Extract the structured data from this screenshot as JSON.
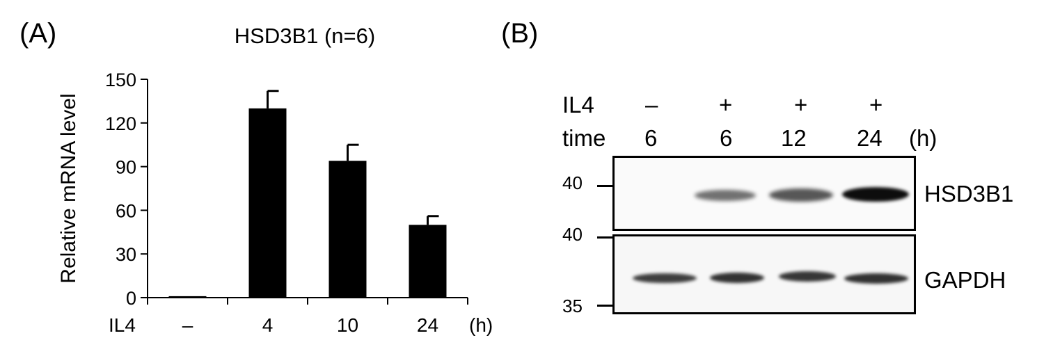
{
  "panel_a": {
    "letter": "(A)",
    "title": "HSD3B1 (n=6)",
    "row_label": "IL4",
    "unit_label": "(h)"
  },
  "panel_b": {
    "letter": "(B)",
    "row_labels": {
      "il4": "IL4",
      "time": "time",
      "unit": "(h)"
    },
    "lanes": [
      {
        "il4": "–",
        "time": "6"
      },
      {
        "il4": "+",
        "time": "6"
      },
      {
        "il4": "+",
        "time": "12"
      },
      {
        "il4": "+",
        "time": "24"
      }
    ],
    "blots": [
      {
        "protein": "HSD3B1",
        "marker_top": "40",
        "band_intensity": [
          0.0,
          0.55,
          0.65,
          0.95
        ]
      },
      {
        "protein": "GAPDH",
        "marker_top": "40",
        "marker_bottom": "35",
        "band_intensity": [
          0.75,
          0.8,
          0.78,
          0.8
        ]
      }
    ]
  },
  "chart_data": {
    "type": "bar",
    "title": "HSD3B1 (n=6)",
    "xlabel": "IL4",
    "ylabel": "Relative mRNA level",
    "categories": [
      "–",
      "4",
      "10",
      "24"
    ],
    "values": [
      1,
      130,
      94,
      50
    ],
    "errors": [
      0,
      12,
      11,
      6
    ],
    "ylim": [
      0,
      150
    ],
    "yticks": [
      0,
      30,
      60,
      90,
      120,
      150
    ],
    "grid": false
  }
}
